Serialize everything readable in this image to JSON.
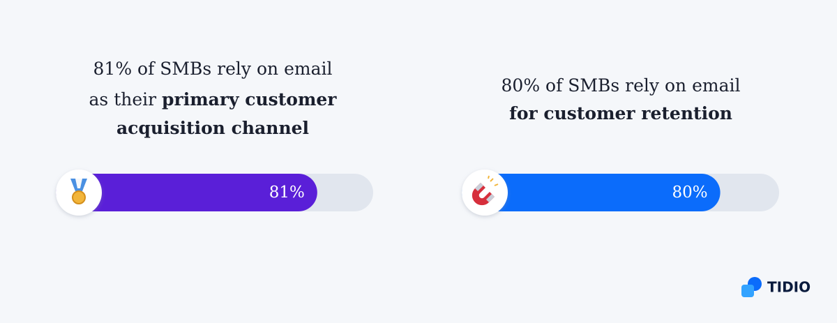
{
  "chart_data": {
    "type": "progress",
    "xlim": [
      0,
      100
    ],
    "items": [
      {
        "title": [
          [
            {
              "text": "81% of SMBs rely on email",
              "bold": false
            }
          ],
          [
            {
              "text": "as their ",
              "bold": false
            },
            {
              "text": "primary customer",
              "bold": true
            }
          ],
          [
            {
              "text": "acquisition channel",
              "bold": true
            }
          ]
        ],
        "value": 81,
        "value_label": "81%",
        "color": "#5a1fd8"
      },
      {
        "title": [
          [
            {
              "text": "80% of SMBs rely on email",
              "bold": false
            }
          ],
          [
            {
              "text": "for customer retention",
              "bold": true
            }
          ]
        ],
        "value": 80,
        "value_label": "80%",
        "color": "#0b6cfb"
      }
    ],
    "logo": "TIDIO"
  }
}
